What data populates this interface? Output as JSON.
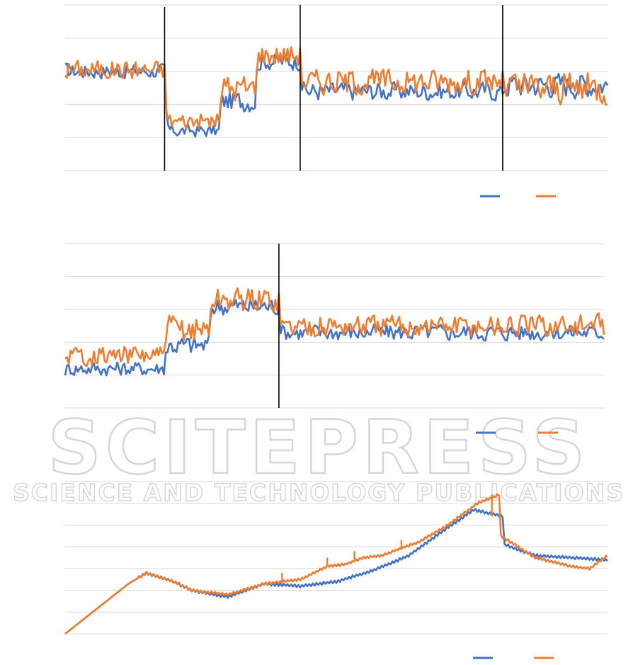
{
  "colors": {
    "series_a": "#4472C4",
    "series_b": "#ED7D31",
    "grid": "#D9D9D9",
    "divider": "#000000"
  },
  "watermark": {
    "title": "SCITEPRESS",
    "subtitle": "SCIENCE AND TECHNOLOGY PUBLICATIONS"
  },
  "chart_data": [
    {
      "type": "line",
      "ylim": [
        0,
        5
      ],
      "xlim": [
        0,
        300
      ],
      "grid": true,
      "legend": "bottom-right",
      "phase_dividers": [
        55,
        130,
        242
      ],
      "segments": [
        {
          "from": 0,
          "to": 55,
          "a": 3.0,
          "b": 3.05,
          "amp": 0.35
        },
        {
          "from": 55,
          "to": 85,
          "a": 1.2,
          "b": 1.5,
          "amp": 0.3
        },
        {
          "from": 85,
          "to": 105,
          "a": 2.1,
          "b": 2.5,
          "amp": 0.5
        },
        {
          "from": 105,
          "to": 130,
          "a": 3.3,
          "b": 3.5,
          "amp": 0.4
        },
        {
          "from": 130,
          "to": 242,
          "a": 2.4,
          "b": 2.7,
          "amp": 0.45
        },
        {
          "from": 242,
          "to": 300,
          "a": 2.6,
          "b": 2.5,
          "amp": 0.6
        }
      ],
      "series": [
        {
          "color_key": "series_a"
        },
        {
          "color_key": "series_b"
        }
      ]
    },
    {
      "type": "line",
      "ylim": [
        0,
        5
      ],
      "xlim": [
        0,
        300
      ],
      "grid": true,
      "legend": "bottom-right",
      "phase_dividers": [
        119
      ],
      "segments": [
        {
          "from": 0,
          "to": 55,
          "a": 1.2,
          "b": 1.6,
          "amp": 0.35
        },
        {
          "from": 55,
          "to": 80,
          "a": 1.9,
          "b": 2.4,
          "amp": 0.5
        },
        {
          "from": 80,
          "to": 119,
          "a": 3.1,
          "b": 3.3,
          "amp": 0.45
        },
        {
          "from": 119,
          "to": 300,
          "a": 2.3,
          "b": 2.5,
          "amp": 0.4
        }
      ],
      "series": [
        {
          "color_key": "series_a"
        },
        {
          "color_key": "series_b"
        }
      ]
    },
    {
      "type": "line",
      "ylim": [
        0,
        7
      ],
      "xlim": [
        0,
        300
      ],
      "grid": true,
      "legend": "bottom-right",
      "phase_dividers": [],
      "points_a": [
        [
          0,
          0
        ],
        [
          35,
          2.3
        ],
        [
          45,
          2.8
        ],
        [
          60,
          2.4
        ],
        [
          70,
          2.0
        ],
        [
          90,
          1.7
        ],
        [
          110,
          2.3
        ],
        [
          130,
          2.2
        ],
        [
          150,
          2.4
        ],
        [
          170,
          2.9
        ],
        [
          190,
          3.6
        ],
        [
          210,
          4.8
        ],
        [
          226,
          5.7
        ],
        [
          242,
          5.4
        ],
        [
          243,
          4.1
        ],
        [
          260,
          3.6
        ],
        [
          280,
          3.5
        ],
        [
          300,
          3.4
        ]
      ],
      "points_b": [
        [
          0,
          0
        ],
        [
          35,
          2.3
        ],
        [
          45,
          2.8
        ],
        [
          60,
          2.4
        ],
        [
          70,
          2.0
        ],
        [
          90,
          1.8
        ],
        [
          110,
          2.3
        ],
        [
          120,
          2.4
        ],
        [
          130,
          2.5
        ],
        [
          145,
          3.1
        ],
        [
          155,
          3.2
        ],
        [
          165,
          3.5
        ],
        [
          175,
          3.6
        ],
        [
          188,
          4.0
        ],
        [
          195,
          4.2
        ],
        [
          210,
          4.9
        ],
        [
          228,
          6.0
        ],
        [
          240,
          6.4
        ],
        [
          241,
          4.5
        ],
        [
          260,
          3.5
        ],
        [
          280,
          3.1
        ],
        [
          290,
          3.0
        ],
        [
          300,
          3.6
        ]
      ],
      "drop_spikes_b": [
        [
          120,
          2.8,
          2.4
        ],
        [
          145,
          3.5,
          3.1
        ],
        [
          160,
          3.8,
          3.4
        ],
        [
          186,
          4.3,
          3.9
        ],
        [
          236,
          6.4,
          5.4
        ]
      ],
      "series": [
        {
          "color_key": "series_a"
        },
        {
          "color_key": "series_b"
        }
      ]
    }
  ]
}
